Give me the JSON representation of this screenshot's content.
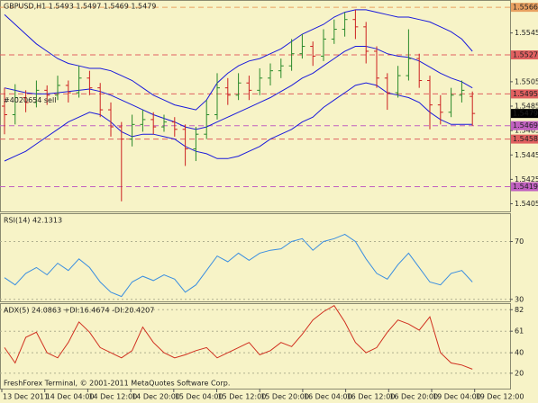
{
  "chart_data": [
    {
      "type": "ohlc",
      "title": "GBPUSD,H1  1.5493 1.5497 1.5469 1.5479",
      "annotation": "#4020654 sell",
      "open": [
        1.5485,
        1.5478,
        1.5492,
        1.5488,
        1.5498,
        1.5494,
        1.5502,
        1.5496,
        1.5508,
        1.55,
        1.5482,
        1.5468,
        1.5458,
        1.547,
        1.5474,
        1.5468,
        1.5472,
        1.5466,
        1.545,
        1.5462,
        1.5478,
        1.55,
        1.5494,
        1.5504,
        1.5498,
        1.5508,
        1.5514,
        1.5518,
        1.5528,
        1.5534,
        1.5526,
        1.554,
        1.5548,
        1.5556,
        1.555,
        1.553,
        1.5508,
        1.5496,
        1.551,
        1.5524,
        1.5506,
        1.5486,
        1.548,
        1.5494,
        1.5493
      ],
      "high": [
        1.55,
        1.5503,
        1.5498,
        1.5506,
        1.5502,
        1.551,
        1.5506,
        1.5518,
        1.5514,
        1.5504,
        1.5488,
        1.5472,
        1.5478,
        1.5482,
        1.548,
        1.5478,
        1.5476,
        1.547,
        1.5468,
        1.549,
        1.5512,
        1.5508,
        1.5512,
        1.551,
        1.5516,
        1.552,
        1.5524,
        1.554,
        1.5544,
        1.5538,
        1.5548,
        1.5556,
        1.5562,
        1.5564,
        1.5554,
        1.5534,
        1.5512,
        1.5518,
        1.5548,
        1.5528,
        1.551,
        1.5494,
        1.55,
        1.5506,
        1.5497
      ],
      "low": [
        1.5462,
        1.547,
        1.548,
        1.5484,
        1.5486,
        1.549,
        1.5488,
        1.5492,
        1.5494,
        1.5476,
        1.546,
        1.5407,
        1.5452,
        1.5464,
        1.5462,
        1.5464,
        1.546,
        1.5436,
        1.544,
        1.5458,
        1.5474,
        1.5486,
        1.549,
        1.549,
        1.5494,
        1.5502,
        1.5508,
        1.5514,
        1.5524,
        1.5518,
        1.5522,
        1.5536,
        1.5542,
        1.554,
        1.552,
        1.55,
        1.5482,
        1.5492,
        1.5506,
        1.55,
        1.5466,
        1.547,
        1.5476,
        1.5488,
        1.5469
      ],
      "close": [
        1.5478,
        1.5492,
        1.5488,
        1.5498,
        1.5494,
        1.5502,
        1.5496,
        1.5508,
        1.55,
        1.5482,
        1.5468,
        1.5458,
        1.547,
        1.5474,
        1.5468,
        1.5472,
        1.5466,
        1.545,
        1.5462,
        1.5478,
        1.55,
        1.5494,
        1.5504,
        1.5498,
        1.5508,
        1.5514,
        1.5518,
        1.5528,
        1.5534,
        1.5526,
        1.554,
        1.5548,
        1.5556,
        1.555,
        1.553,
        1.5508,
        1.5496,
        1.551,
        1.5524,
        1.5506,
        1.5486,
        1.548,
        1.5494,
        1.5498,
        1.5479
      ],
      "bands": [
        {
          "color": "#1a1adc",
          "values": [
            1.556,
            1.5552,
            1.5544,
            1.5536,
            1.553,
            1.5524,
            1.552,
            1.5518,
            1.5516,
            1.5516,
            1.5514,
            1.551,
            1.5506,
            1.55,
            1.5494,
            1.549,
            1.5486,
            1.5484,
            1.5482,
            1.549,
            1.5504,
            1.5512,
            1.5518,
            1.5522,
            1.5524,
            1.5528,
            1.5532,
            1.5538,
            1.5544,
            1.5548,
            1.5552,
            1.5558,
            1.5562,
            1.5564,
            1.5564,
            1.5562,
            1.556,
            1.5558,
            1.5558,
            1.5556,
            1.5554,
            1.555,
            1.5546,
            1.554,
            1.553
          ]
        },
        {
          "color": "#1a1adc",
          "values": [
            1.55,
            1.5498,
            1.5496,
            1.5495,
            1.5495,
            1.5496,
            1.5497,
            1.5498,
            1.5499,
            1.5497,
            1.5494,
            1.549,
            1.5486,
            1.5482,
            1.5478,
            1.5475,
            1.5472,
            1.5468,
            1.5466,
            1.5468,
            1.5472,
            1.5476,
            1.548,
            1.5484,
            1.5488,
            1.5492,
            1.5497,
            1.5502,
            1.5508,
            1.5512,
            1.5518,
            1.5524,
            1.553,
            1.5534,
            1.5534,
            1.5532,
            1.5528,
            1.5526,
            1.5525,
            1.5522,
            1.5517,
            1.5512,
            1.5508,
            1.5505,
            1.55
          ]
        },
        {
          "color": "#1a1adc",
          "values": [
            1.544,
            1.5444,
            1.5448,
            1.5454,
            1.546,
            1.5466,
            1.5472,
            1.5476,
            1.548,
            1.5478,
            1.5472,
            1.5464,
            1.546,
            1.5462,
            1.5462,
            1.546,
            1.5458,
            1.5452,
            1.5448,
            1.5446,
            1.5442,
            1.5442,
            1.5444,
            1.5448,
            1.5452,
            1.5458,
            1.5462,
            1.5466,
            1.5472,
            1.5476,
            1.5484,
            1.549,
            1.5496,
            1.5502,
            1.5504,
            1.5502,
            1.5496,
            1.5494,
            1.5492,
            1.5488,
            1.548,
            1.5474,
            1.547,
            1.547,
            1.547
          ]
        }
      ],
      "up_color": "#2a8a2a",
      "down_color": "#cc2020",
      "levels": [
        {
          "value": 1.5566,
          "color": "#e8a060"
        },
        {
          "value": 1.5527,
          "color": "#e06060"
        },
        {
          "value": 1.5495,
          "color": "#e06060"
        },
        {
          "value": 1.5469,
          "color": "#c060c0"
        },
        {
          "value": 1.5458,
          "color": "#e06060"
        },
        {
          "value": 1.5419,
          "color": "#c060c0"
        }
      ],
      "last": 1.5479,
      "ylim": [
        1.5398,
        1.5572
      ],
      "yticks": [
        1.5545,
        1.5505,
        1.5485,
        1.5465,
        1.5445,
        1.5425,
        1.5405
      ]
    },
    {
      "type": "line",
      "title": "RSI(14) 42.1313",
      "color": "#3a8ee0",
      "values": [
        45,
        40,
        48,
        52,
        47,
        55,
        50,
        58,
        52,
        42,
        35,
        32,
        42,
        46,
        43,
        47,
        44,
        35,
        40,
        50,
        60,
        56,
        62,
        57,
        62,
        64,
        65,
        70,
        72,
        64,
        70,
        72,
        75,
        70,
        58,
        48,
        44,
        54,
        62,
        52,
        42,
        40,
        48,
        50,
        42
      ],
      "ylim": [
        28,
        89
      ],
      "yticks": [
        70,
        30
      ]
    },
    {
      "type": "line",
      "title": "ADX(5) 24.0863 +DI:16.4674 -DI:20.4207",
      "color": "#d03020",
      "values": [
        45,
        30,
        55,
        60,
        40,
        35,
        50,
        70,
        60,
        45,
        40,
        35,
        42,
        65,
        50,
        40,
        35,
        38,
        42,
        45,
        35,
        40,
        45,
        50,
        38,
        42,
        50,
        46,
        58,
        72,
        80,
        86,
        70,
        50,
        40,
        45,
        60,
        72,
        68,
        62,
        75,
        40,
        30,
        28,
        24
      ],
      "ylim": [
        5,
        87.5
      ],
      "yticks": [
        82,
        61,
        40,
        20
      ],
      "annotation": "FreshForex Terminal, © 2001-2011 MetaQuotes Software Corp.",
      "time_labels": [
        "13 Dec 2011",
        "14 Dec 04:00",
        "14 Dec 12:00",
        "14 Dec 20:00",
        "15 Dec 04:00",
        "15 Dec 12:00",
        "15 Dec 20:00",
        "16 Dec 04:00",
        "16 Dec 12:00",
        "16 Dec 20:00",
        "19 Dec 04:00",
        "19 Dec 12:00"
      ]
    }
  ]
}
